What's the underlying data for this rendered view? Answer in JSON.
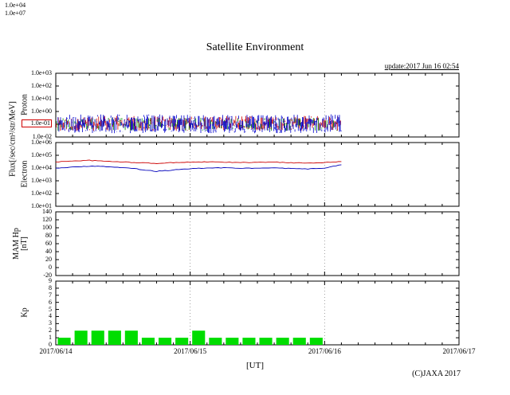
{
  "header": {
    "title": "Satellite Environment",
    "update_text": "update:2017 Jun 16 02:54"
  },
  "footer": {
    "copyright": "(C)JAXA 2017",
    "x_axis_label": "[UT]"
  },
  "stray_labels": {
    "top_left_1": "1.0e+04",
    "top_left_2": "1.0e+07"
  },
  "left_labels": {
    "flux_unit": "Flux[/sec/cm²/str/MeV]",
    "proton": "Proton",
    "electron": "Electron",
    "mam_line1": "MAM Hp",
    "mam_line2": "[nT]",
    "kp": "Kp"
  },
  "x_axis": {
    "tick_labels": [
      "2017/06/14",
      "2017/06/15",
      "2017/06/16",
      "2017/06/17"
    ],
    "total_hours": 72,
    "minor_tick_hours": 3,
    "grid_hours": [
      24,
      48
    ]
  },
  "chart_data": [
    {
      "panel": "proton",
      "title": "Proton flux",
      "type": "scatter",
      "render": "vertical-noise-band",
      "yscale": "log",
      "ylabel": "Proton",
      "ylim": [
        0.01,
        1000
      ],
      "ytick_labels": [
        "1.0e+03",
        "1.0e+02",
        "1.0e+01",
        "1.0e+00",
        "1.0e-01",
        "1.0e-02"
      ],
      "highlighted_tick": "1.0e-01",
      "data_end_hour": 51,
      "series": [
        {
          "name": "proton-channel-red",
          "color": "#cc0000",
          "value_band": [
            0.03,
            0.45
          ],
          "seed": 22,
          "step": 0.18
        },
        {
          "name": "proton-channel-green",
          "color": "#008800",
          "value_band": [
            0.03,
            0.32
          ],
          "seed": 33,
          "step": 0.3
        },
        {
          "name": "proton-channel-blue",
          "color": "#0000cc",
          "value_band": [
            0.02,
            0.6
          ],
          "seed": 11,
          "step": 0.15
        }
      ]
    },
    {
      "panel": "electron",
      "title": "Electron flux",
      "type": "line",
      "yscale": "log",
      "ylabel": "Electron",
      "ylim": [
        10,
        1000000
      ],
      "ytick_labels": [
        "1.0e+06",
        "1.0e+05",
        "1.0e+04",
        "1.0e+03",
        "1.0e+02",
        "1.0e+01"
      ],
      "data_end_hour": 51,
      "series": [
        {
          "name": "electron-upper",
          "color": "#cc0000",
          "t_hours": [
            0,
            3,
            6,
            9,
            12,
            15,
            18,
            21,
            24,
            27,
            30,
            33,
            36,
            39,
            42,
            45,
            48,
            51
          ],
          "values": [
            30000,
            36000,
            40000,
            34000,
            30000,
            26000,
            23000,
            27000,
            29000,
            30000,
            29000,
            27000,
            28000,
            29000,
            26000,
            25000,
            27000,
            32000
          ]
        },
        {
          "name": "electron-lower",
          "color": "#0000bb",
          "t_hours": [
            0,
            3,
            6,
            9,
            12,
            15,
            18,
            21,
            24,
            27,
            30,
            33,
            36,
            39,
            42,
            45,
            48,
            51
          ],
          "values": [
            10000,
            12000,
            14000,
            13000,
            11000,
            8000,
            5500,
            7000,
            9000,
            10000,
            10500,
            9500,
            10000,
            10500,
            9000,
            8500,
            10000,
            18000
          ]
        }
      ]
    },
    {
      "panel": "mam-hp",
      "title": "MAM Hp (no data)",
      "type": "line",
      "yscale": "linear",
      "ylabel": "MAM Hp [nT]",
      "ylim": [
        -20,
        140
      ],
      "ytick_labels": [
        "140",
        "120",
        "100",
        "80",
        "60",
        "40",
        "20",
        "0",
        "-20"
      ],
      "series": []
    },
    {
      "panel": "kp",
      "title": "Kp index",
      "type": "bar",
      "yscale": "linear",
      "ylabel": "Kp",
      "ylim": [
        0,
        9
      ],
      "ytick_labels": [
        "9",
        "8",
        "7",
        "6",
        "5",
        "4",
        "3",
        "2",
        "1",
        "0"
      ],
      "bar_color": "#00dd00",
      "bin_hours": 3,
      "start_hour": 0,
      "values": [
        1,
        2,
        2,
        2,
        2,
        1,
        1,
        1,
        2,
        1,
        1,
        1,
        1,
        1,
        1,
        1
      ]
    }
  ]
}
